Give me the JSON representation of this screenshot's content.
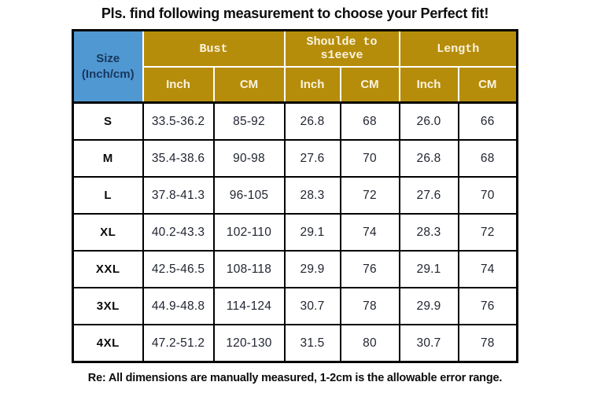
{
  "title": "Pls. find following measurement to choose your Perfect fit!",
  "footer_note": "Re: All dimensions are manually measured, 1-2cm is the allowable error range.",
  "colors": {
    "header_gold": "#b68d0a",
    "header_text": "#faf3e0",
    "size_blue": "#5098d2",
    "size_text": "#17375d",
    "border": "#000000"
  },
  "table": {
    "size_header": {
      "line1": "Size",
      "line2": "(Inch/cm)"
    },
    "groups": [
      {
        "label": "Bust"
      },
      {
        "label": "Shoulde to s1eeve"
      },
      {
        "label": "Length"
      }
    ],
    "subheaders": [
      "Inch",
      "CM",
      "Inch",
      "CM",
      "Inch",
      "CM"
    ],
    "rows": [
      {
        "size": "S",
        "values": [
          "33.5-36.2",
          "85-92",
          "26.8",
          "68",
          "26.0",
          "66"
        ]
      },
      {
        "size": "M",
        "values": [
          "35.4-38.6",
          "90-98",
          "27.6",
          "70",
          "26.8",
          "68"
        ]
      },
      {
        "size": "L",
        "values": [
          "37.8-41.3",
          "96-105",
          "28.3",
          "72",
          "27.6",
          "70"
        ]
      },
      {
        "size": "XL",
        "values": [
          "40.2-43.3",
          "102-110",
          "29.1",
          "74",
          "28.3",
          "72"
        ]
      },
      {
        "size": "XXL",
        "values": [
          "42.5-46.5",
          "108-118",
          "29.9",
          "76",
          "29.1",
          "74"
        ]
      },
      {
        "size": "3XL",
        "values": [
          "44.9-48.8",
          "114-124",
          "30.7",
          "78",
          "29.9",
          "76"
        ]
      },
      {
        "size": "4XL",
        "values": [
          "47.2-51.2",
          "120-130",
          "31.5",
          "80",
          "30.7",
          "78"
        ]
      }
    ]
  },
  "chart_data": {
    "type": "table",
    "title": "Pls. find following measurement to choose your Perfect fit!",
    "columns": [
      "Size (Inch/cm)",
      "Bust Inch",
      "Bust CM",
      "Shoulde to s1eeve Inch",
      "Shoulde to s1eeve CM",
      "Length Inch",
      "Length CM"
    ],
    "rows": [
      [
        "S",
        "33.5-36.2",
        "85-92",
        "26.8",
        "68",
        "26.0",
        "66"
      ],
      [
        "M",
        "35.4-38.6",
        "90-98",
        "27.6",
        "70",
        "26.8",
        "68"
      ],
      [
        "L",
        "37.8-41.3",
        "96-105",
        "28.3",
        "72",
        "27.6",
        "70"
      ],
      [
        "XL",
        "40.2-43.3",
        "102-110",
        "29.1",
        "74",
        "28.3",
        "72"
      ],
      [
        "XXL",
        "42.5-46.5",
        "108-118",
        "29.9",
        "76",
        "29.1",
        "74"
      ],
      [
        "3XL",
        "44.9-48.8",
        "114-124",
        "30.7",
        "78",
        "29.9",
        "76"
      ],
      [
        "4XL",
        "47.2-51.2",
        "120-130",
        "31.5",
        "80",
        "30.7",
        "78"
      ]
    ],
    "footnote": "Re: All dimensions are manually measured, 1-2cm is the allowable error range."
  }
}
